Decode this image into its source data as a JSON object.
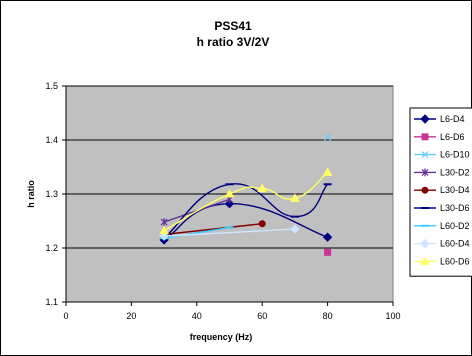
{
  "chart_data": {
    "type": "scatter",
    "title": "PSS41",
    "subtitle": "h ratio 3V/2V",
    "xlabel": "frequency (Hz)",
    "ylabel": "h ratio",
    "xlim": [
      0,
      100
    ],
    "ylim": [
      1.1,
      1.5
    ],
    "x_ticks": [
      "0",
      "20",
      "40",
      "60",
      "80",
      "100"
    ],
    "y_ticks": [
      "1.1",
      "1.2",
      "1.3",
      "1.4",
      "1.5"
    ],
    "grid": "horizontal",
    "legend_position": "right",
    "plot_background": "#c0c0c0",
    "series": [
      {
        "name": "L6-D4",
        "color": "#000080",
        "marker": "diamond",
        "smooth": true,
        "x": [
          30,
          50,
          80
        ],
        "y": [
          1.215,
          1.282,
          1.22
        ]
      },
      {
        "name": "L6-D6",
        "color": "#cc3399",
        "marker": "square",
        "smooth": false,
        "x": [
          80
        ],
        "y": [
          1.192
        ]
      },
      {
        "name": "L6-D10",
        "color": "#66ccff",
        "marker": "x",
        "smooth": false,
        "x": [
          80
        ],
        "y": [
          1.405
        ]
      },
      {
        "name": "L30-D2",
        "color": "#663399",
        "marker": "star",
        "smooth": true,
        "x": [
          30,
          50
        ],
        "y": [
          1.248,
          1.29
        ]
      },
      {
        "name": "L30-D4",
        "color": "#800000",
        "marker": "circle",
        "smooth": true,
        "x": [
          30,
          60
        ],
        "y": [
          1.225,
          1.245
        ]
      },
      {
        "name": "L30-D6",
        "color": "#000080",
        "marker": "dash",
        "smooth": true,
        "x": [
          30,
          50,
          70,
          80
        ],
        "y": [
          1.218,
          1.318,
          1.258,
          1.318
        ]
      },
      {
        "name": "L60-D2",
        "color": "#33ccff",
        "marker": "dash",
        "smooth": true,
        "x": [
          30,
          50
        ],
        "y": [
          1.218,
          1.238
        ]
      },
      {
        "name": "L60-D4",
        "color": "#cce6ff",
        "marker": "diamond",
        "smooth": true,
        "x": [
          30,
          70
        ],
        "y": [
          1.222,
          1.235
        ]
      },
      {
        "name": "L60-D6",
        "color": "#ffff66",
        "marker": "triangle",
        "smooth": true,
        "x": [
          30,
          50,
          60,
          70,
          80
        ],
        "y": [
          1.232,
          1.3,
          1.31,
          1.292,
          1.34
        ]
      }
    ]
  }
}
